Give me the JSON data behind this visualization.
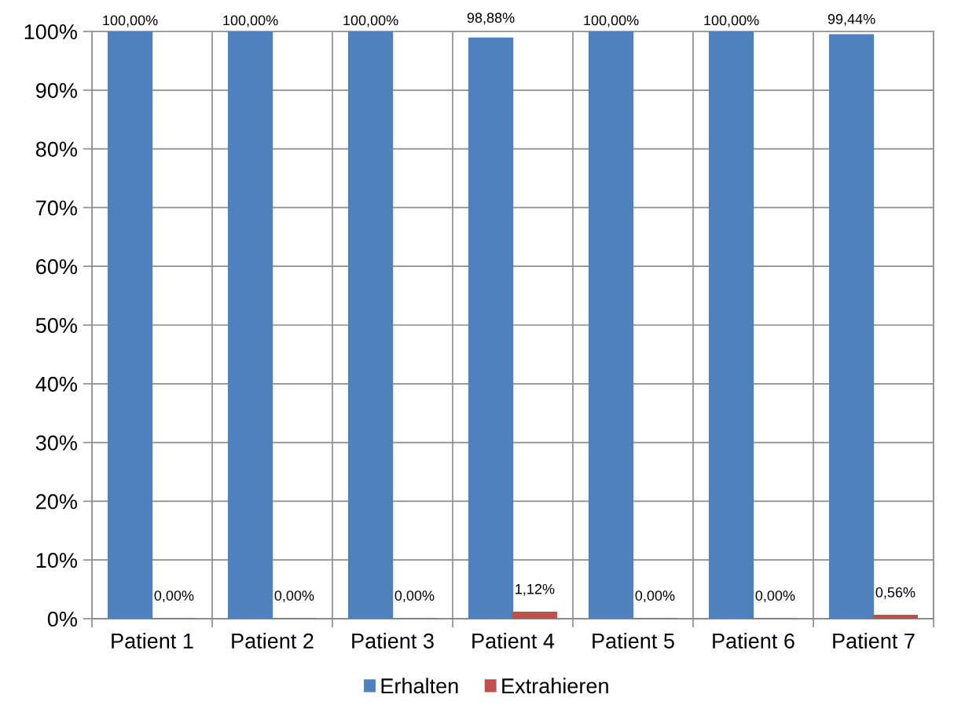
{
  "chart_data": {
    "type": "bar",
    "categories": [
      "Patient 1",
      "Patient 2",
      "Patient 3",
      "Patient 4",
      "Patient 5",
      "Patient 6",
      "Patient 7"
    ],
    "series": [
      {
        "name": "Erhalten",
        "color": "#4f81bd",
        "values": [
          100,
          100,
          100,
          98.88,
          100,
          100,
          99.44
        ],
        "value_labels": [
          "100,00%",
          "100,00%",
          "100,00%",
          "98,88%",
          "100,00%",
          "100,00%",
          "99,44%"
        ]
      },
      {
        "name": "Extrahieren",
        "color": "#c0504d",
        "values": [
          0,
          0,
          0,
          1.12,
          0,
          0,
          0.56
        ],
        "value_labels": [
          "0,00%",
          "0,00%",
          "0,00%",
          "1,12%",
          "0,00%",
          "0,00%",
          "0,56%"
        ]
      }
    ],
    "ylim": [
      0,
      100
    ],
    "yticks": [
      {
        "value": 0,
        "label": "0%"
      },
      {
        "value": 10,
        "label": "10%"
      },
      {
        "value": 20,
        "label": "20%"
      },
      {
        "value": 30,
        "label": "30%"
      },
      {
        "value": 40,
        "label": "40%"
      },
      {
        "value": 50,
        "label": "50%"
      },
      {
        "value": 60,
        "label": "60%"
      },
      {
        "value": 70,
        "label": "70%"
      },
      {
        "value": 80,
        "label": "80%"
      },
      {
        "value": 90,
        "label": "90%"
      },
      {
        "value": 100,
        "label": "100%"
      }
    ],
    "grid": true,
    "legend": "bottom"
  }
}
